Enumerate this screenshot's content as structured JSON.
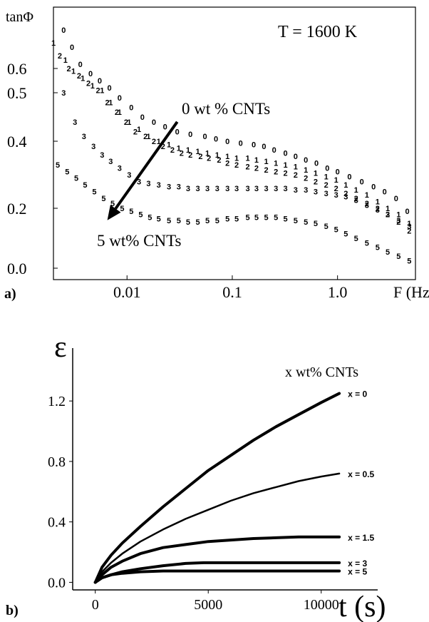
{
  "chart_data": [
    {
      "panel_label": "a)",
      "type": "scatter",
      "ylabel": "tanΦ",
      "xlabel": "F (Hz)",
      "annotation_temperature": "T = 1600 K",
      "annotation_start": "0 wt % CNTs",
      "annotation_end": "5 wt% CNTs",
      "x_scale": "log",
      "xlim": [
        0.002,
        5.5
      ],
      "ylim": [
        0.0,
        0.72
      ],
      "x_ticks": [
        {
          "value": 0.01,
          "label": "0.01"
        },
        {
          "value": 0.1,
          "label": "0.1"
        },
        {
          "value": 1.0,
          "label": "1.0"
        }
      ],
      "y_ticks": [
        {
          "value": 0.0,
          "label": "0.0"
        },
        {
          "value": 0.2,
          "label": "0.2"
        },
        {
          "value": 0.4,
          "label": "0.4"
        },
        {
          "value": 0.5,
          "label": "0.5"
        },
        {
          "value": 0.6,
          "label": "0.6"
        }
      ],
      "series": [
        {
          "name": "0",
          "color": "#000000",
          "x": [
            0.0025,
            0.003,
            0.0036,
            0.0045,
            0.0055,
            0.0068,
            0.0085,
            0.011,
            0.014,
            0.018,
            0.023,
            0.03,
            0.04,
            0.055,
            0.07,
            0.09,
            0.12,
            0.16,
            0.2,
            0.25,
            0.32,
            0.4,
            0.5,
            0.63,
            0.8,
            1.0,
            1.3,
            1.7,
            2.2,
            2.8,
            3.6,
            4.6
          ],
          "y": [
            0.69,
            0.65,
            0.61,
            0.58,
            0.55,
            0.52,
            0.49,
            0.47,
            0.45,
            0.44,
            0.43,
            0.42,
            0.415,
            0.41,
            0.405,
            0.4,
            0.395,
            0.39,
            0.385,
            0.375,
            0.365,
            0.355,
            0.345,
            0.335,
            0.32,
            0.31,
            0.295,
            0.28,
            0.265,
            0.25,
            0.23,
            0.19
          ]
        },
        {
          "name": "1",
          "color": "#000000",
          "x": [
            0.002,
            0.0026,
            0.0031,
            0.0038,
            0.0047,
            0.0058,
            0.007,
            0.0085,
            0.0105,
            0.013,
            0.016,
            0.02,
            0.025,
            0.031,
            0.038,
            0.047,
            0.058,
            0.072,
            0.09,
            0.11,
            0.14,
            0.17,
            0.21,
            0.26,
            0.32,
            0.4,
            0.5,
            0.62,
            0.78,
            0.97,
            1.2,
            1.5,
            1.9,
            2.4,
            3.0,
            3.8,
            4.8
          ],
          "y": [
            0.66,
            0.62,
            0.59,
            0.56,
            0.53,
            0.51,
            0.48,
            0.46,
            0.44,
            0.425,
            0.41,
            0.4,
            0.39,
            0.38,
            0.375,
            0.37,
            0.365,
            0.36,
            0.355,
            0.35,
            0.35,
            0.345,
            0.34,
            0.335,
            0.33,
            0.325,
            0.315,
            0.305,
            0.295,
            0.285,
            0.27,
            0.255,
            0.24,
            0.22,
            0.2,
            0.18,
            0.15
          ]
        },
        {
          "name": "2",
          "color": "#000000",
          "x": [
            0.0023,
            0.0028,
            0.0035,
            0.0043,
            0.0053,
            0.0065,
            0.008,
            0.0098,
            0.012,
            0.015,
            0.018,
            0.022,
            0.027,
            0.033,
            0.04,
            0.05,
            0.06,
            0.075,
            0.09,
            0.11,
            0.14,
            0.17,
            0.21,
            0.26,
            0.32,
            0.4,
            0.5,
            0.62,
            0.78,
            0.97,
            1.2,
            1.5,
            1.9,
            2.4,
            3.0,
            3.8,
            4.8
          ],
          "y": [
            0.63,
            0.6,
            0.57,
            0.54,
            0.51,
            0.48,
            0.46,
            0.44,
            0.42,
            0.41,
            0.4,
            0.385,
            0.375,
            0.365,
            0.36,
            0.355,
            0.35,
            0.345,
            0.335,
            0.33,
            0.325,
            0.32,
            0.315,
            0.31,
            0.305,
            0.3,
            0.29,
            0.28,
            0.27,
            0.26,
            0.245,
            0.23,
            0.215,
            0.2,
            0.18,
            0.155,
            0.125
          ]
        },
        {
          "name": "3",
          "color": "#000000",
          "x": [
            0.0025,
            0.0032,
            0.0039,
            0.0048,
            0.0058,
            0.007,
            0.0085,
            0.0105,
            0.013,
            0.016,
            0.02,
            0.025,
            0.031,
            0.038,
            0.047,
            0.058,
            0.072,
            0.09,
            0.11,
            0.14,
            0.17,
            0.21,
            0.26,
            0.32,
            0.4,
            0.5,
            0.62,
            0.78,
            0.97,
            1.2,
            1.5,
            1.9,
            2.4,
            3.0,
            3.8,
            4.8
          ],
          "y": [
            0.5,
            0.44,
            0.41,
            0.385,
            0.36,
            0.34,
            0.32,
            0.3,
            0.28,
            0.275,
            0.27,
            0.265,
            0.265,
            0.26,
            0.26,
            0.26,
            0.26,
            0.26,
            0.26,
            0.26,
            0.26,
            0.26,
            0.26,
            0.26,
            0.255,
            0.255,
            0.25,
            0.245,
            0.24,
            0.235,
            0.225,
            0.21,
            0.195,
            0.18,
            0.16,
            0.14
          ]
        },
        {
          "name": "5",
          "color": "#000000",
          "x": [
            0.0022,
            0.0027,
            0.0033,
            0.004,
            0.0049,
            0.006,
            0.0073,
            0.009,
            0.011,
            0.0135,
            0.0165,
            0.02,
            0.025,
            0.031,
            0.038,
            0.047,
            0.058,
            0.072,
            0.09,
            0.11,
            0.14,
            0.17,
            0.21,
            0.26,
            0.32,
            0.4,
            0.5,
            0.62,
            0.78,
            0.97,
            1.2,
            1.5,
            1.9,
            2.4,
            3.0,
            3.8,
            4.8
          ],
          "y": [
            0.33,
            0.31,
            0.29,
            0.27,
            0.25,
            0.23,
            0.215,
            0.2,
            0.19,
            0.18,
            0.17,
            0.165,
            0.16,
            0.16,
            0.155,
            0.155,
            0.16,
            0.16,
            0.165,
            0.165,
            0.17,
            0.17,
            0.17,
            0.17,
            0.165,
            0.16,
            0.155,
            0.15,
            0.14,
            0.13,
            0.115,
            0.1,
            0.085,
            0.07,
            0.055,
            0.04,
            0.025
          ]
        }
      ],
      "arrow": {
        "from": [
          0.03,
          0.44
        ],
        "to": [
          0.0065,
          0.16
        ]
      }
    },
    {
      "panel_label": "b)",
      "type": "line",
      "ylabel": "ε",
      "xlabel": "t (s)",
      "legend_title": "x wt% CNTs",
      "xlim": [
        -1000,
        12500
      ],
      "ylim": [
        -0.05,
        1.55
      ],
      "x_ticks": [
        {
          "value": 0,
          "label": "0"
        },
        {
          "value": 5000,
          "label": "5000"
        },
        {
          "value": 10000,
          "label": "10000"
        }
      ],
      "y_ticks": [
        {
          "value": 0.0,
          "label": "0.0"
        },
        {
          "value": 0.4,
          "label": "0.4"
        },
        {
          "value": 0.8,
          "label": "0.8"
        },
        {
          "value": 1.2,
          "label": "1.2"
        }
      ],
      "series": [
        {
          "name": "x = 0",
          "label": "x = 0",
          "color": "#000000",
          "bold": true,
          "x": [
            0,
            300,
            700,
            1200,
            2000,
            3000,
            4000,
            5000,
            6000,
            7000,
            8000,
            9000,
            10000,
            10800
          ],
          "y": [
            0.0,
            0.1,
            0.18,
            0.26,
            0.37,
            0.5,
            0.62,
            0.74,
            0.84,
            0.94,
            1.03,
            1.11,
            1.19,
            1.25
          ]
        },
        {
          "name": "x = 0.5",
          "label": "x = 0.5",
          "color": "#000000",
          "bold": false,
          "x": [
            0,
            300,
            700,
            1200,
            2000,
            3000,
            4000,
            5000,
            6000,
            7000,
            8000,
            9000,
            10000,
            10800
          ],
          "y": [
            0.0,
            0.07,
            0.13,
            0.19,
            0.27,
            0.35,
            0.42,
            0.48,
            0.54,
            0.59,
            0.63,
            0.67,
            0.7,
            0.72
          ]
        },
        {
          "name": "x = 1.5",
          "label": "x = 1.5",
          "color": "#000000",
          "bold": true,
          "x": [
            0,
            300,
            700,
            1200,
            2000,
            3000,
            4000,
            5000,
            6000,
            7000,
            8000,
            9000,
            10000,
            10800
          ],
          "y": [
            0.0,
            0.05,
            0.1,
            0.14,
            0.19,
            0.23,
            0.25,
            0.27,
            0.28,
            0.29,
            0.295,
            0.3,
            0.3,
            0.3
          ]
        },
        {
          "name": "x = 3",
          "label": "x = 3",
          "color": "#000000",
          "bold": true,
          "x": [
            0,
            300,
            700,
            1200,
            2000,
            3000,
            4000,
            4800,
            6000,
            7000,
            8000,
            9000,
            10000,
            10800
          ],
          "y": [
            0.0,
            0.03,
            0.05,
            0.07,
            0.09,
            0.11,
            0.125,
            0.13,
            0.13,
            0.13,
            0.13,
            0.13,
            0.13,
            0.13
          ]
        },
        {
          "name": "x = 5",
          "label": "x = 5",
          "color": "#000000",
          "bold": true,
          "x": [
            0,
            300,
            700,
            1200,
            2000,
            3000,
            4000,
            5000,
            6000,
            7000,
            8000,
            9000,
            10000,
            10800
          ],
          "y": [
            0.0,
            0.03,
            0.05,
            0.06,
            0.07,
            0.075,
            0.075,
            0.075,
            0.075,
            0.075,
            0.075,
            0.075,
            0.075,
            0.075
          ]
        }
      ]
    }
  ]
}
